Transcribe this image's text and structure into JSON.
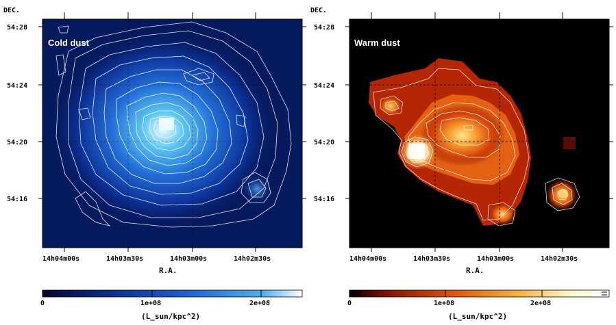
{
  "figure": {
    "panels": [
      {
        "label": "Cold dust",
        "dec_axis_label": "DEC.",
        "ra_axis_label": "R.A.",
        "dec_ticks": [
          "54:28",
          "54:24",
          "54:20",
          "54:16"
        ],
        "ra_ticks": [
          "14h04m00s",
          "14h03m30s",
          "14h03m00s",
          "14h02m30s"
        ],
        "colormap": [
          "#03082a",
          "#0a2d8c",
          "#1f5fd6",
          "#4fb0ee",
          "#ffffff"
        ],
        "colorbar": {
          "ticks": [
            "0",
            "1e+08",
            "2e+08"
          ],
          "unit": "(L_sun/kpc^2)"
        }
      },
      {
        "label": "Warm dust",
        "dec_axis_label": "DEC.",
        "ra_axis_label": "R.A.",
        "dec_ticks": [
          "54:28",
          "54:24",
          "54:20",
          "54:16"
        ],
        "ra_ticks": [
          "14h04m00s",
          "14h03m30s",
          "14h03m00s",
          "14h02m30s"
        ],
        "colormap": [
          "#000000",
          "#8a1300",
          "#e0560a",
          "#f6b040",
          "#fff6c8",
          "#ffffff"
        ],
        "colorbar": {
          "ticks": [
            "0",
            "1e+08",
            "2e+08"
          ],
          "unit": "(L_sun/kpc^2)"
        }
      }
    ]
  }
}
